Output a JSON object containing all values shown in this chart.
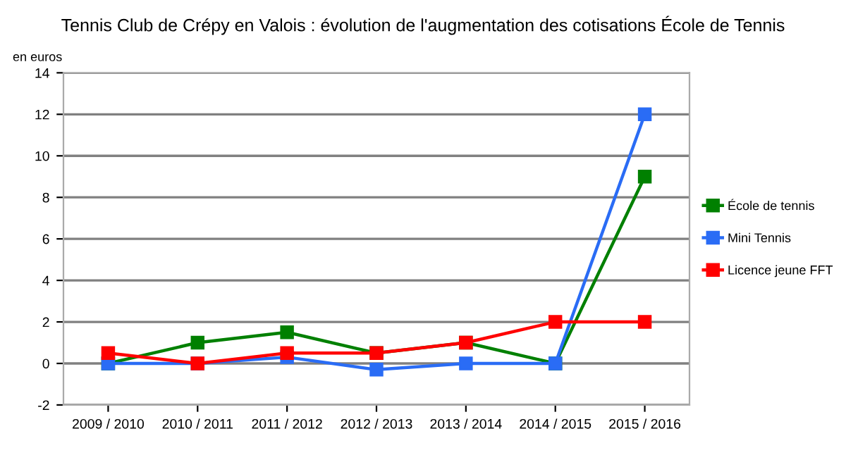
{
  "chart_data": {
    "type": "line",
    "title": "Tennis Club de Crépy en Valois : évolution de l'augmentation des cotisations École de Tennis",
    "ylabel": "en euros",
    "categories": [
      "2009 / 2010",
      "2010 / 2011",
      "2011 / 2012",
      "2012 / 2013",
      "2013 / 2014",
      "2014 / 2015",
      "2015 / 2016"
    ],
    "series": [
      {
        "name": "École de tennis",
        "color": "#008000",
        "values": [
          0,
          1,
          1.5,
          0.5,
          1,
          0,
          9
        ]
      },
      {
        "name": "Mini Tennis",
        "color": "#2a6cf5",
        "values": [
          0,
          0,
          0.3,
          -0.3,
          0,
          0,
          12
        ]
      },
      {
        "name": "Licence jeune FFT",
        "color": "#ff0000",
        "values": [
          0.5,
          0,
          0.5,
          0.5,
          1,
          2,
          2
        ]
      }
    ],
    "ylim": [
      -2,
      14
    ],
    "yticks": [
      -2,
      0,
      2,
      4,
      6,
      8,
      10,
      12,
      14
    ],
    "grid": "y",
    "legend": "right",
    "marker": "square",
    "line_style": "solid"
  }
}
